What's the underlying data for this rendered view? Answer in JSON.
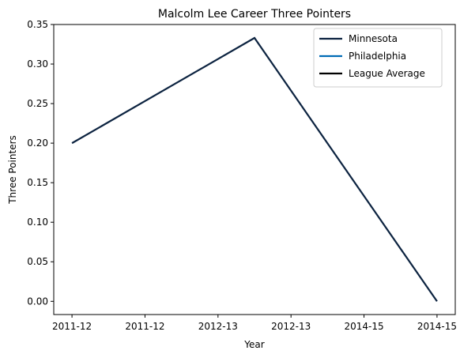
{
  "chart_data": {
    "type": "line",
    "title": "Malcolm Lee  Career Three Pointers",
    "xlabel": "Year",
    "ylabel": "Three Pointers",
    "x_tick_labels": [
      "2011-12",
      "2011-12",
      "2012-13",
      "2012-13",
      "2014-15",
      "2014-15"
    ],
    "x_range": [
      -0.25,
      5.25
    ],
    "ylim": [
      -0.0167,
      0.35
    ],
    "y_ticks": [
      0.0,
      0.05,
      0.1,
      0.15,
      0.2,
      0.25,
      0.3,
      0.35
    ],
    "grid": false,
    "legend_position": "top-right",
    "series": [
      {
        "name": "Minnesota",
        "color": "#0c2340",
        "x": [
          0,
          2.5,
          5
        ],
        "y": [
          0.2,
          0.333,
          0.0
        ]
      },
      {
        "name": "Philadelphia",
        "color": "#006bb6",
        "x": [],
        "y": []
      },
      {
        "name": "League Average",
        "color": "#000000",
        "x": [],
        "y": []
      }
    ]
  }
}
